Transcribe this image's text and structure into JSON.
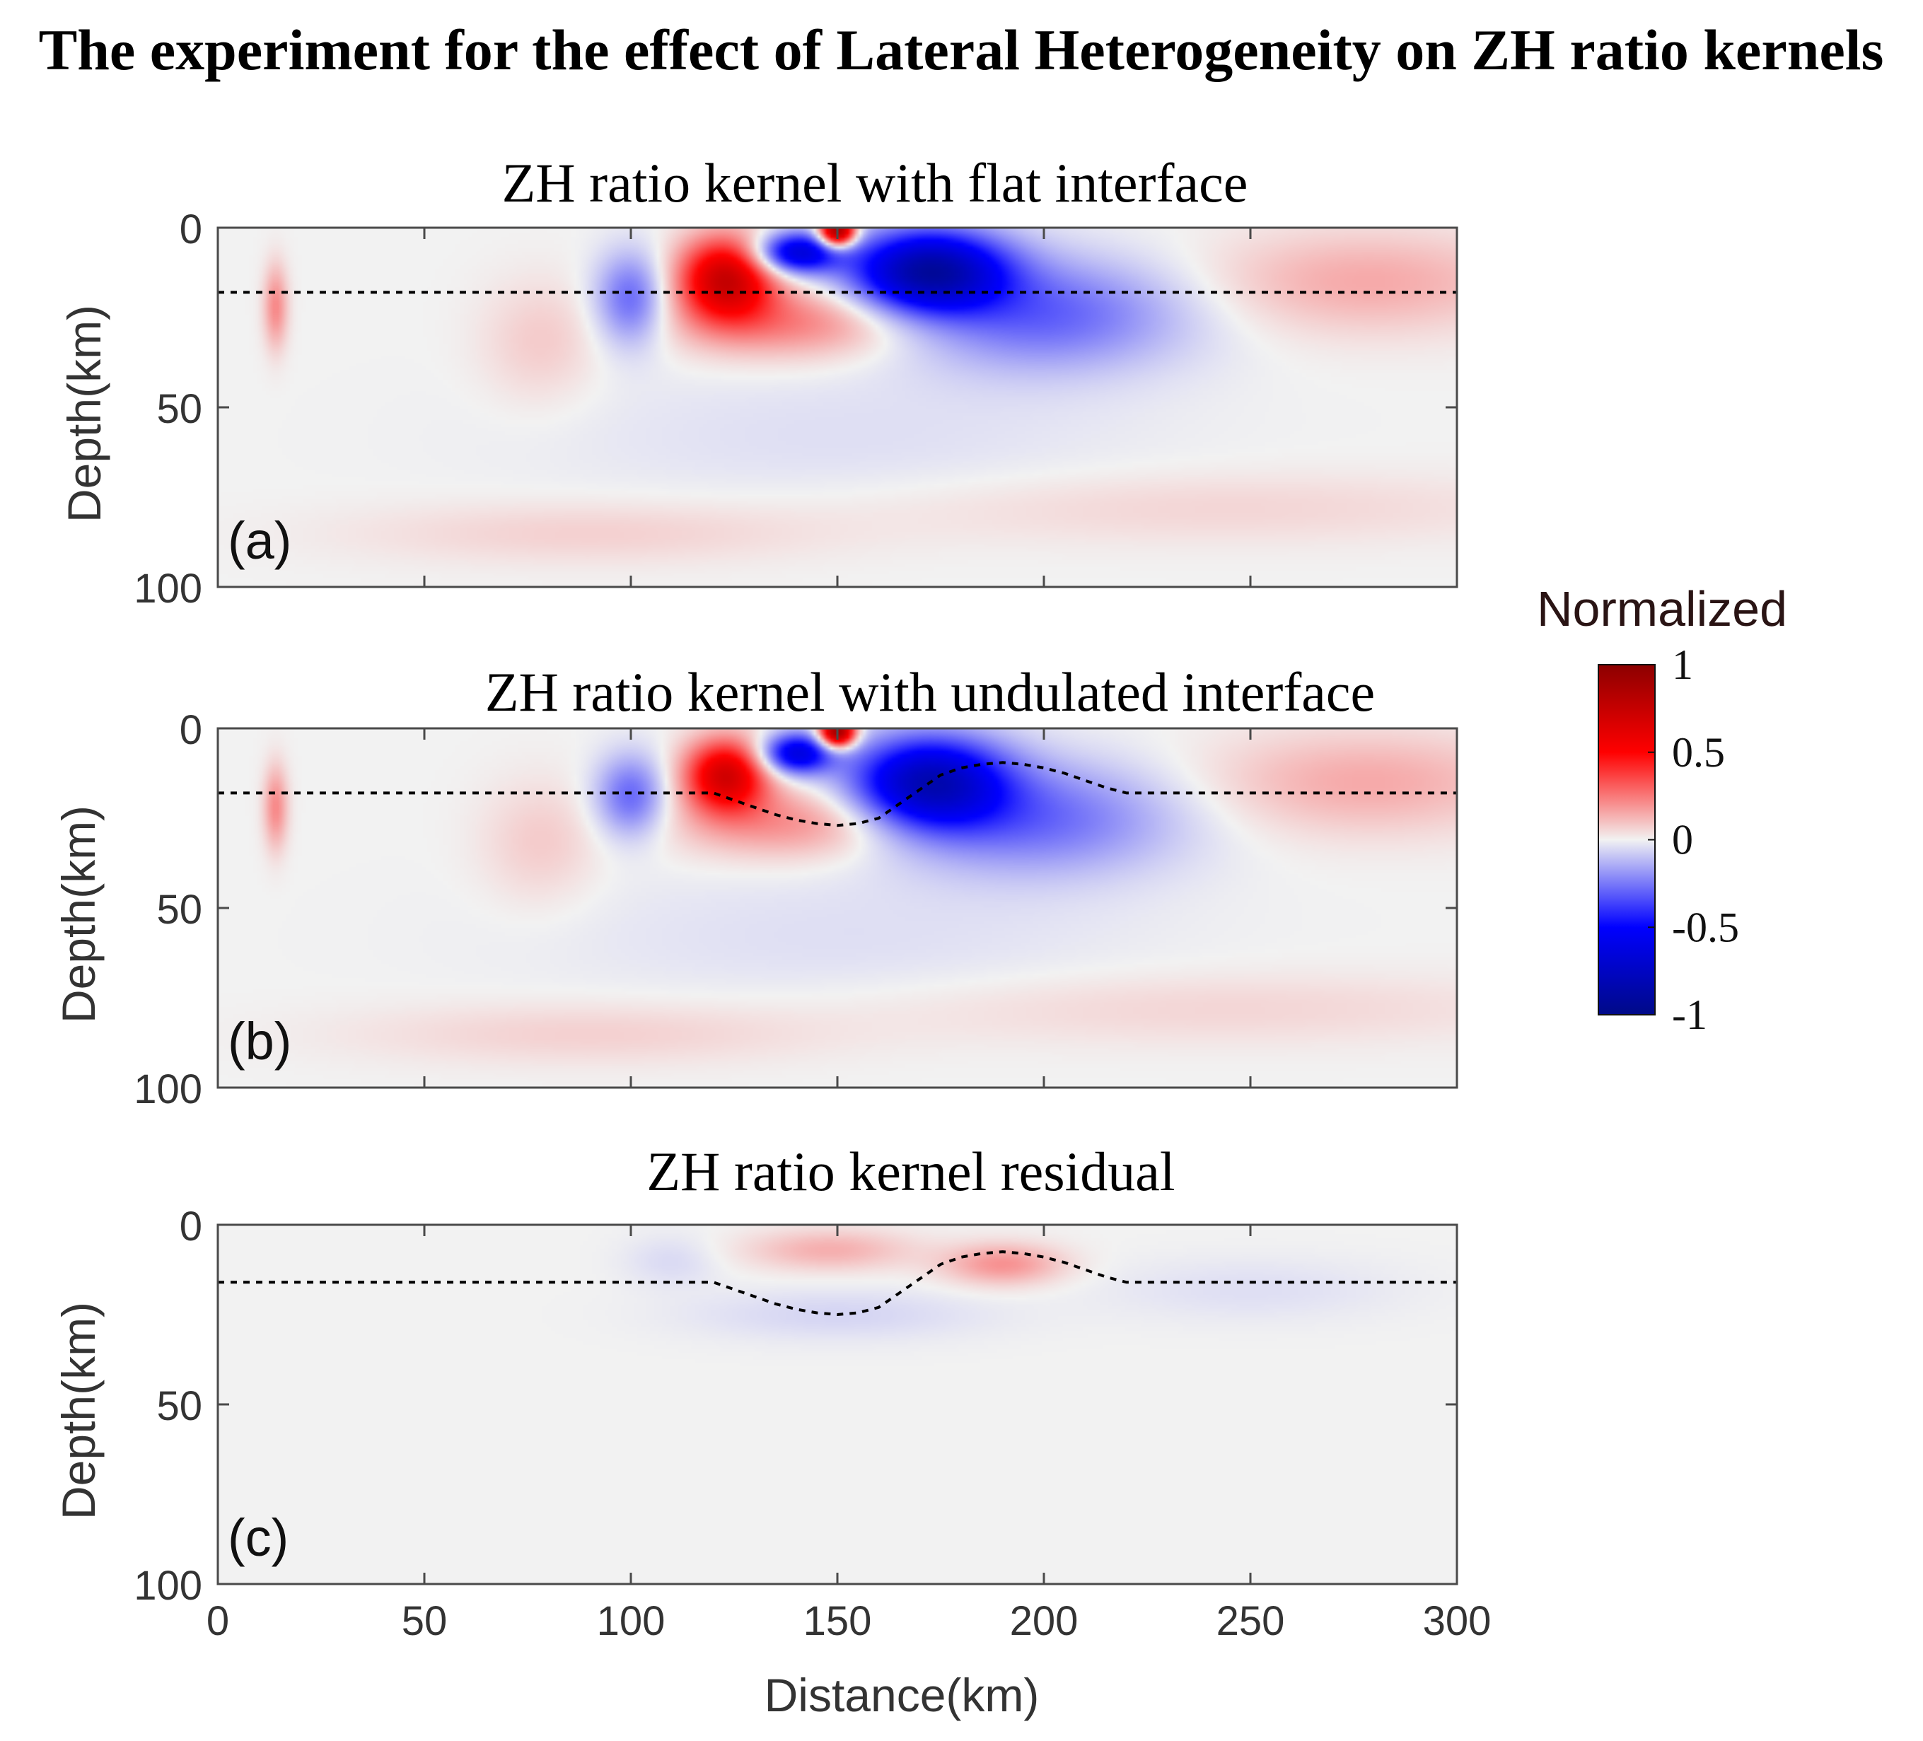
{
  "figure": {
    "title": "The experiment for the effect of Lateral Heterogeneity on ZH ratio kernels",
    "colorbar": {
      "label": "Normalized",
      "ticks": [
        "1",
        "0.5",
        "0",
        "-0.5",
        "-1"
      ],
      "tick_values": [
        1,
        0.5,
        0,
        -0.5,
        -1
      ],
      "range": [
        -1,
        1
      ],
      "colors": [
        "#000a87",
        "#0000ff",
        "#f2f2f2",
        "#ff0000",
        "#8c0000"
      ]
    }
  },
  "chart_data": [
    {
      "type": "heatmap",
      "panel": "(a)",
      "title": "ZH ratio kernel with flat interface",
      "xlabel": "",
      "ylabel": "Depth(km)",
      "xlim": [
        0,
        300
      ],
      "ylim": [
        100,
        0
      ],
      "xticks": [
        0,
        50,
        100,
        150,
        200,
        250,
        300
      ],
      "yticks": [
        0,
        50,
        100
      ],
      "xtick_labels_shown": false,
      "interface": {
        "style": "dotted",
        "x": [
          0,
          300
        ],
        "depth": [
          18,
          18
        ]
      },
      "anomalies": [
        {
          "x": 150,
          "depth": 1,
          "sx": 3,
          "sz": 3,
          "value": 1.0
        },
        {
          "x": 123,
          "depth": 14,
          "sx": 8,
          "sz": 8,
          "value": 0.72
        },
        {
          "x": 140,
          "depth": 26,
          "sx": 20,
          "sz": 7,
          "value": 0.25
        },
        {
          "x": 140,
          "depth": 7,
          "sx": 7,
          "sz": 4,
          "value": -0.65
        },
        {
          "x": 172,
          "depth": 12,
          "sx": 13,
          "sz": 8,
          "value": -0.85
        },
        {
          "x": 200,
          "depth": 24,
          "sx": 24,
          "sz": 11,
          "value": -0.3
        },
        {
          "x": 100,
          "depth": 20,
          "sx": 6,
          "sz": 9,
          "value": -0.3
        },
        {
          "x": 278,
          "depth": 15,
          "sx": 28,
          "sz": 10,
          "value": 0.15
        },
        {
          "x": 14,
          "depth": 22,
          "sx": 2,
          "sz": 8,
          "value": 0.22
        },
        {
          "x": 78,
          "depth": 32,
          "sx": 10,
          "sz": 12,
          "value": 0.08
        },
        {
          "x": 90,
          "depth": 85,
          "sx": 40,
          "sz": 6,
          "value": 0.07
        },
        {
          "x": 240,
          "depth": 78,
          "sx": 60,
          "sz": 7,
          "value": 0.06
        },
        {
          "x": 150,
          "depth": 58,
          "sx": 50,
          "sz": 14,
          "value": -0.04
        }
      ]
    },
    {
      "type": "heatmap",
      "panel": "(b)",
      "title": "ZH ratio kernel with undulated  interface",
      "xlabel": "",
      "ylabel": "Depth(km)",
      "xlim": [
        0,
        300
      ],
      "ylim": [
        100,
        0
      ],
      "xticks": [
        0,
        50,
        100,
        150,
        200,
        250,
        300
      ],
      "yticks": [
        0,
        50,
        100
      ],
      "xtick_labels_shown": false,
      "interface": {
        "style": "dotted",
        "x": [
          0,
          120,
          125,
          130,
          135,
          140,
          145,
          150,
          155,
          160,
          165,
          170,
          175,
          180,
          185,
          190,
          195,
          200,
          205,
          210,
          215,
          220,
          300
        ],
        "depth": [
          18,
          18,
          20,
          22,
          24,
          25.5,
          26.5,
          27,
          26.5,
          25,
          21,
          17,
          13,
          11,
          10,
          9.5,
          10,
          11,
          12.5,
          14.5,
          16.5,
          18,
          18
        ]
      },
      "anomalies": [
        {
          "x": 150,
          "depth": 1,
          "sx": 3,
          "sz": 3,
          "value": 1.0
        },
        {
          "x": 123,
          "depth": 13,
          "sx": 7,
          "sz": 7,
          "value": 0.68
        },
        {
          "x": 140,
          "depth": 26,
          "sx": 20,
          "sz": 7,
          "value": 0.22
        },
        {
          "x": 140,
          "depth": 7,
          "sx": 6,
          "sz": 4,
          "value": -0.62
        },
        {
          "x": 172,
          "depth": 15,
          "sx": 13,
          "sz": 9,
          "value": -0.75
        },
        {
          "x": 198,
          "depth": 25,
          "sx": 24,
          "sz": 11,
          "value": -0.28
        },
        {
          "x": 100,
          "depth": 19,
          "sx": 6,
          "sz": 8,
          "value": -0.3
        },
        {
          "x": 278,
          "depth": 15,
          "sx": 28,
          "sz": 10,
          "value": 0.15
        },
        {
          "x": 14,
          "depth": 22,
          "sx": 2,
          "sz": 8,
          "value": 0.22
        },
        {
          "x": 78,
          "depth": 32,
          "sx": 10,
          "sz": 12,
          "value": 0.08
        },
        {
          "x": 90,
          "depth": 85,
          "sx": 40,
          "sz": 6,
          "value": 0.07
        },
        {
          "x": 240,
          "depth": 78,
          "sx": 60,
          "sz": 7,
          "value": 0.06
        },
        {
          "x": 150,
          "depth": 58,
          "sx": 50,
          "sz": 14,
          "value": -0.04
        }
      ]
    },
    {
      "type": "heatmap",
      "panel": "(c)",
      "title": "ZH ratio kernel residual",
      "xlabel": "Distance(km)",
      "ylabel": "Depth(km)",
      "xlim": [
        0,
        300
      ],
      "ylim": [
        100,
        0
      ],
      "xticks": [
        0,
        50,
        100,
        150,
        200,
        250,
        300
      ],
      "yticks": [
        0,
        50,
        100
      ],
      "xtick_labels_shown": true,
      "interface": {
        "style": "dotted",
        "x": [
          0,
          120,
          125,
          130,
          135,
          140,
          145,
          150,
          155,
          160,
          165,
          170,
          175,
          180,
          185,
          190,
          195,
          200,
          205,
          210,
          215,
          220,
          300
        ],
        "depth": [
          16,
          16,
          18,
          20,
          22,
          23.5,
          24.5,
          25,
          24.5,
          23,
          19,
          15,
          11,
          9,
          8,
          7.5,
          8,
          9,
          10.5,
          12.5,
          14.5,
          16,
          16
        ]
      },
      "anomalies": [
        {
          "x": 148,
          "depth": 7,
          "sx": 14,
          "sz": 4,
          "value": 0.14
        },
        {
          "x": 190,
          "depth": 11,
          "sx": 10,
          "sz": 4,
          "value": 0.2
        },
        {
          "x": 150,
          "depth": 25,
          "sx": 25,
          "sz": 5,
          "value": -0.06
        },
        {
          "x": 250,
          "depth": 18,
          "sx": 25,
          "sz": 6,
          "value": -0.04
        },
        {
          "x": 110,
          "depth": 10,
          "sx": 8,
          "sz": 5,
          "value": -0.05
        }
      ]
    }
  ]
}
